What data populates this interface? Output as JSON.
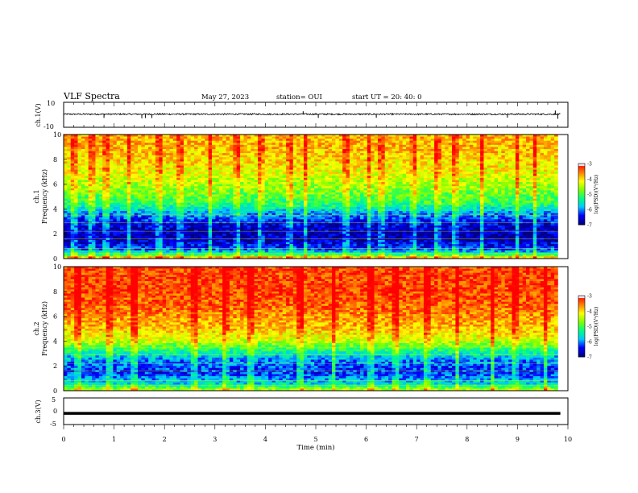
{
  "header": {
    "title": "VLF Spectra",
    "date": "May 27, 2023",
    "station": "station= OUI",
    "start": "start UT = 20: 40: 0"
  },
  "chart_data": [
    {
      "type": "line",
      "name": "ch1-waveform",
      "ylabel": "ch.1(V)",
      "ylim": [
        -10,
        10
      ],
      "yticks": [
        "10",
        "-10"
      ],
      "x": "time (min)",
      "xlim": [
        0,
        10
      ],
      "baseline": 0.5,
      "noise": 0.6,
      "spikes": [
        {
          "x": 0.8,
          "y": -2.5
        },
        {
          "x": 1.55,
          "y": -2.8
        },
        {
          "x": 1.62,
          "y": -2.6
        },
        {
          "x": 1.75,
          "y": -2.6
        },
        {
          "x": 4.75,
          "y": 2.8
        },
        {
          "x": 5.05,
          "y": -2.5
        },
        {
          "x": 6.2,
          "y": -2.4
        },
        {
          "x": 8.8,
          "y": -2.3
        },
        {
          "x": 9.75,
          "y": 3.4
        },
        {
          "x": 9.8,
          "y": -3.2
        }
      ]
    },
    {
      "type": "heatmap",
      "name": "ch1-spectrogram",
      "ylabel": "Frequency (kHz)",
      "channel_label": "ch.1",
      "xlim": [
        0,
        9.8
      ],
      "ylim": [
        0,
        10
      ],
      "yticks": [
        "0",
        "2",
        "4",
        "6",
        "8",
        "10"
      ],
      "colorbar": {
        "label": "log(PSD)(V²/Hz)",
        "range": [
          -7,
          -3
        ],
        "ticks": [
          "-3",
          "-4",
          "-5",
          "-6",
          "-7"
        ]
      },
      "profile_log_psd_by_frequency": [
        {
          "f": 0.0,
          "v": -3.4
        },
        {
          "f": 0.3,
          "v": -5.2
        },
        {
          "f": 0.8,
          "v": -6.3
        },
        {
          "f": 1.5,
          "v": -6.8
        },
        {
          "f": 2.5,
          "v": -6.7
        },
        {
          "f": 3.5,
          "v": -6.1
        },
        {
          "f": 4.5,
          "v": -5.1
        },
        {
          "f": 5.5,
          "v": -4.7
        },
        {
          "f": 7.0,
          "v": -4.2
        },
        {
          "f": 8.5,
          "v": -3.9
        },
        {
          "f": 10.0,
          "v": -3.8
        }
      ],
      "impulse_times_min": [
        0.2,
        0.55,
        0.85,
        1.3,
        1.9,
        2.3,
        2.9,
        3.45,
        3.9,
        4.5,
        4.8,
        5.6,
        6.05,
        6.3,
        6.95,
        7.4,
        7.75,
        8.3,
        9.0,
        9.35
      ]
    },
    {
      "type": "heatmap",
      "name": "ch2-spectrogram",
      "ylabel": "Frequency (kHz)",
      "channel_label": "ch.2",
      "xlim": [
        0,
        9.8
      ],
      "ylim": [
        0,
        10
      ],
      "yticks": [
        "0",
        "2",
        "4",
        "6",
        "8",
        "10"
      ],
      "colorbar": {
        "label": "log(PSD)(V²/Hz)",
        "range": [
          -7,
          -3
        ],
        "ticks": [
          "-3",
          "-4",
          "-5",
          "-6",
          "-7"
        ]
      },
      "profile_log_psd_by_frequency": [
        {
          "f": 0.0,
          "v": -4.2
        },
        {
          "f": 0.5,
          "v": -5.6
        },
        {
          "f": 1.5,
          "v": -6.4
        },
        {
          "f": 2.5,
          "v": -6.0
        },
        {
          "f": 3.3,
          "v": -5.2
        },
        {
          "f": 4.0,
          "v": -4.4
        },
        {
          "f": 5.0,
          "v": -3.9
        },
        {
          "f": 6.5,
          "v": -3.5
        },
        {
          "f": 8.0,
          "v": -3.3
        },
        {
          "f": 10.0,
          "v": -3.3
        }
      ],
      "impulse_times_min": [
        0.3,
        0.9,
        1.4,
        2.6,
        3.2,
        3.7,
        4.7,
        5.35,
        6.1,
        6.6,
        7.2,
        7.8,
        8.5,
        8.95,
        9.55
      ]
    },
    {
      "type": "line",
      "name": "ch3-waveform",
      "ylabel": "ch.3(V)",
      "ylim": [
        -5,
        5
      ],
      "yticks": [
        "5",
        "0",
        "-5"
      ],
      "xlim": [
        0,
        10
      ],
      "constant_value": -0.8
    }
  ],
  "x_axis": {
    "label": "Time (min)",
    "ticks": [
      "0",
      "1",
      "2",
      "3",
      "4",
      "5",
      "6",
      "7",
      "8",
      "9",
      "10"
    ]
  },
  "colors": {
    "jet": [
      "#000080",
      "#0000ff",
      "#00c8ff",
      "#00ff80",
      "#80ff00",
      "#ffff00",
      "#ff8000",
      "#ff0000",
      "#ffe0e8"
    ]
  }
}
